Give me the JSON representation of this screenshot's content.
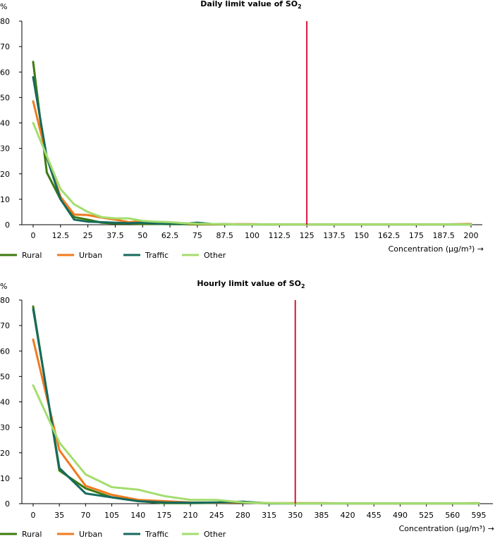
{
  "colors": {
    "Rural": "#3d7a0e",
    "Urban": "#f07a1e",
    "Traffic": "#166a5e",
    "Other": "#a4dd6e",
    "limit": "#d8143c",
    "axis": "#000000"
  },
  "chart_data": [
    {
      "type": "line",
      "title": "Daily limit value of SO",
      "title_sub": "2",
      "ylabel": "%",
      "xlabel": "Concentration (µg/m³) →",
      "ylim": [
        0,
        80
      ],
      "yticks": [
        "0",
        "10",
        "20",
        "30",
        "40",
        "50",
        "60",
        "70",
        "80"
      ],
      "categories": [
        "0",
        "12.5",
        "25",
        "37.5",
        "50",
        "62.5",
        "75",
        "87.5",
        "100",
        "112.5",
        "125",
        "137.5",
        "150",
        "162.5",
        "175",
        "187.5",
        "200"
      ],
      "x": [
        0,
        6.25,
        12.5,
        18.75,
        25,
        31.25,
        37.5,
        43.75,
        50,
        56.25,
        62.5,
        68.75,
        75,
        81.25,
        87.5,
        93.75,
        100,
        106.25,
        112.5,
        118.75,
        125,
        131.25,
        137.5,
        143.75,
        150,
        156.25,
        162.5,
        168.75,
        175,
        181.25,
        187.5,
        193.75,
        200
      ],
      "limit_value": 125,
      "legend": [
        "Rural",
        "Urban",
        "Traffic",
        "Other"
      ],
      "legend_position": "bottom-left",
      "series": [
        {
          "name": "Rural",
          "values": [
            64,
            20.5,
            10,
            3,
            2,
            0.8,
            0.5,
            0.5,
            0.3,
            0.3,
            0.2,
            0.2,
            0.1,
            0.1,
            0.1,
            0.1,
            0.1,
            0.1,
            0.1,
            0.1,
            0.1,
            0.1,
            0.1,
            0.1,
            0.1,
            0.1,
            0.1,
            0.1,
            0.1,
            0.1,
            0.1,
            0.1,
            0.1
          ]
        },
        {
          "name": "Urban",
          "values": [
            48.5,
            26.5,
            11,
            4,
            3.8,
            2.8,
            2,
            1,
            1.4,
            1,
            0.8,
            0.5,
            0.3,
            0.2,
            0.2,
            0.2,
            0.2,
            0.1,
            0.1,
            0.1,
            0.1,
            0.1,
            0.1,
            0.1,
            0.1,
            0.1,
            0.1,
            0.1,
            0.1,
            0.1,
            0.1,
            0.2,
            0.3
          ]
        },
        {
          "name": "Traffic",
          "values": [
            58,
            26.5,
            10,
            2,
            1.2,
            1,
            0.8,
            0.6,
            0.8,
            0.5,
            0.4,
            0.4,
            0.8,
            0.3,
            0.2,
            0.1,
            0.1,
            0.1,
            0.1,
            0.1,
            0.1,
            0.1,
            0.1,
            0.1,
            0.1,
            0.1,
            0.1,
            0.1,
            0.1,
            0.1,
            0.1,
            0.1,
            0.1
          ]
        },
        {
          "name": "Other",
          "values": [
            40,
            27,
            14,
            8,
            5,
            3,
            2.5,
            2.5,
            1.5,
            1.2,
            1,
            0.6,
            0.4,
            0.3,
            0.2,
            0.1,
            0.1,
            0.1,
            0.1,
            0.1,
            0.1,
            0.1,
            0.1,
            0.1,
            0.1,
            0.1,
            0.1,
            0.1,
            0.1,
            0.1,
            0.1,
            0.1,
            0.1
          ]
        }
      ]
    },
    {
      "type": "line",
      "title": "Hourly limit value of SO",
      "title_sub": "2",
      "ylabel": "%",
      "xlabel": "Concentration (µg/m³) →",
      "ylim": [
        0,
        80
      ],
      "yticks": [
        "0",
        "10",
        "20",
        "30",
        "40",
        "50",
        "60",
        "70",
        "80"
      ],
      "categories": [
        "0",
        "35",
        "70",
        "105",
        "140",
        "175",
        "210",
        "245",
        "280",
        "315",
        "350",
        "385",
        "420",
        "455",
        "490",
        "525",
        "560",
        "595"
      ],
      "x": [
        0,
        35,
        70,
        105,
        140,
        175,
        210,
        245,
        280,
        315,
        350,
        385,
        420,
        455,
        490,
        525,
        560,
        595
      ],
      "limit_value": 350,
      "legend": [
        "Rural",
        "Urban",
        "Traffic",
        "Other"
      ],
      "legend_position": "bottom-left",
      "series": [
        {
          "name": "Rural",
          "values": [
            77.5,
            13,
            6,
            2.5,
            1,
            0.2,
            0.2,
            0.3,
            0.5,
            0.1,
            0.1,
            0.1,
            0.1,
            0.1,
            0.1,
            0.1,
            0.1,
            0.1
          ]
        },
        {
          "name": "Urban",
          "values": [
            64.5,
            21,
            7,
            3.5,
            1.5,
            1,
            0.5,
            0.4,
            0.6,
            0.2,
            0.2,
            0.2,
            0.1,
            0.1,
            0.1,
            0.1,
            0.1,
            0.2
          ]
        },
        {
          "name": "Traffic",
          "values": [
            76.5,
            14,
            4,
            2.5,
            1,
            0.5,
            0.4,
            0.5,
            0.8,
            0.1,
            0.1,
            0.1,
            0.1,
            0.1,
            0.1,
            0.1,
            0.1,
            0.1
          ]
        },
        {
          "name": "Other",
          "values": [
            46.5,
            24,
            11.5,
            6.5,
            5.5,
            3,
            1.5,
            1.5,
            0.5,
            0.2,
            0.1,
            0.1,
            0.1,
            0.1,
            0.1,
            0.1,
            0.1,
            0.1
          ]
        }
      ]
    }
  ]
}
